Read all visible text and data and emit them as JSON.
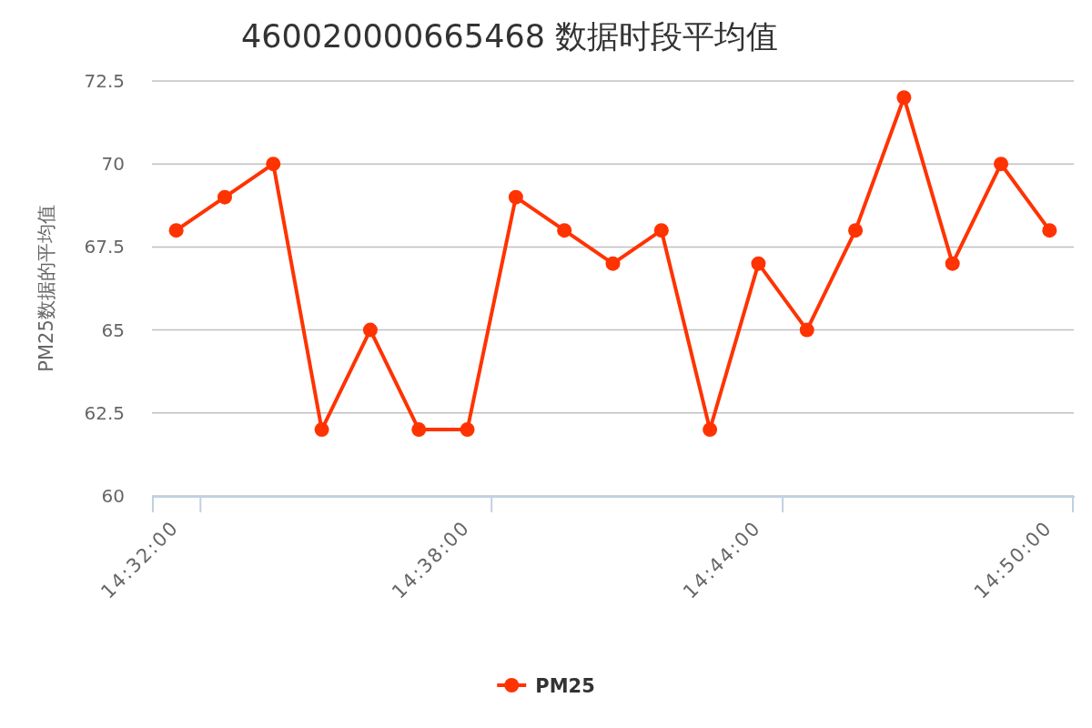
{
  "chart_data": {
    "type": "line",
    "title": "460020000665468 数据时段平均值",
    "ylabel": "PM25数据的平均值",
    "categories": [
      "14:32:00",
      null,
      null,
      null,
      null,
      null,
      "14:38:00",
      null,
      null,
      null,
      null,
      null,
      "14:44:00",
      null,
      null,
      null,
      null,
      null,
      "14:50:00"
    ],
    "series": [
      {
        "name": "PM25",
        "color": "#ff3300",
        "values": [
          68,
          69,
          70,
          62,
          65,
          62,
          62,
          69,
          68,
          67,
          68,
          62,
          67,
          65,
          68,
          72,
          67,
          70,
          68
        ]
      }
    ],
    "ylim": [
      60,
      72.5
    ],
    "yticks": [
      60,
      62.5,
      65,
      67.5,
      70,
      72.5
    ],
    "grid": "y",
    "legend": "bottom",
    "marker": "circle",
    "line_style": "solid"
  }
}
